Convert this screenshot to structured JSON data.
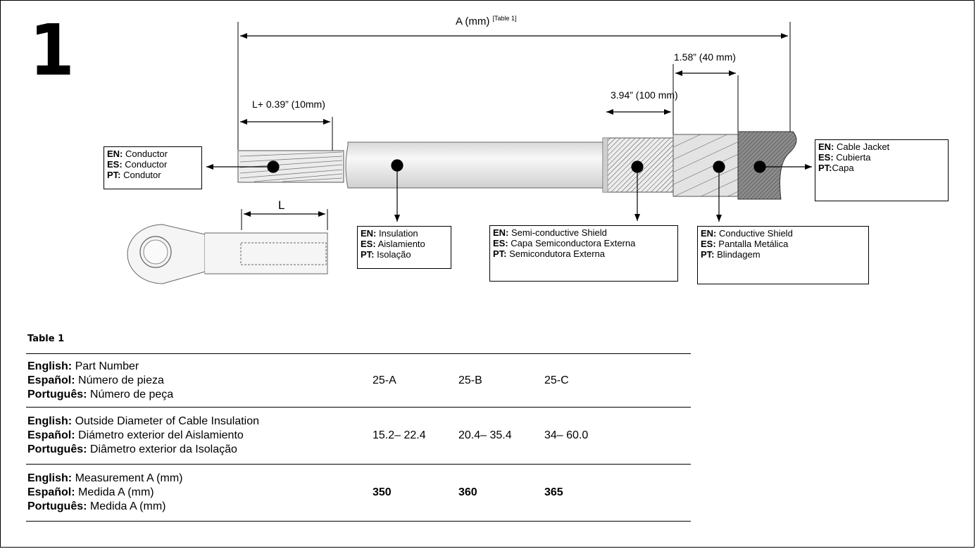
{
  "step_number": "1",
  "dimensions": {
    "a_label": "A (mm)",
    "a_ref": "[Table 1]",
    "l_plus": "L+ 0.39” (10mm)",
    "shield_100": "3.94” (100 mm)",
    "shield_40": "1.58” (40 mm)",
    "lug_l": "L"
  },
  "callouts": {
    "conductor": {
      "en_key": "EN:",
      "en": "Conductor",
      "es_key": "ES:",
      "es": "Conductor",
      "pt_key": "PT:",
      "pt": "Condutor"
    },
    "insulation": {
      "en_key": "EN:",
      "en": "Insulation",
      "es_key": "ES:",
      "es": "Aislamiento",
      "pt_key": "PT:",
      "pt": "Isolação"
    },
    "semi_shield": {
      "en_key": "EN:",
      "en": "Semi-conductive Shield",
      "es_key": "ES:",
      "es": "Capa Semiconductora Externa",
      "pt_key": "PT:",
      "pt": "Semicondutora Externa"
    },
    "conductive_shield": {
      "en_key": "EN:",
      "en": "Conductive Shield",
      "es_key": "ES:",
      "es": "Pantalla Metálica",
      "pt_key": "PT:",
      "pt": "Blindagem"
    },
    "jacket": {
      "en_key": "EN:",
      "en": "Cable Jacket",
      "es_key": "ES:",
      "es": "Cubierta",
      "pt_key": "PT:",
      "pt": "Capa"
    }
  },
  "table": {
    "title": "Table 1",
    "rows": [
      {
        "en_key": "English:",
        "en": "Part Number",
        "es_key": "Español:",
        "es": "Número de pieza",
        "pt_key": "Português:",
        "pt": "Número de peça",
        "values": [
          "25-A",
          "25-B",
          "25-C"
        ]
      },
      {
        "en_key": "English:",
        "en": "Outside Diameter of Cable Insulation",
        "es_key": "Español:",
        "es": "Diámetro exterior del Aislamiento",
        "pt_key": "Português:",
        "pt": "Diâmetro exterior da Isolação",
        "values": [
          "15.2– 22.4",
          "20.4– 35.4",
          "34– 60.0"
        ]
      },
      {
        "en_key": "English:",
        "en": "Measurement A (mm)",
        "es_key": "Español:",
        "es": "Medida A (mm)",
        "pt_key": "Português:",
        "pt": "Medida A (mm)",
        "values": [
          "350",
          "360",
          "365"
        ]
      }
    ]
  }
}
